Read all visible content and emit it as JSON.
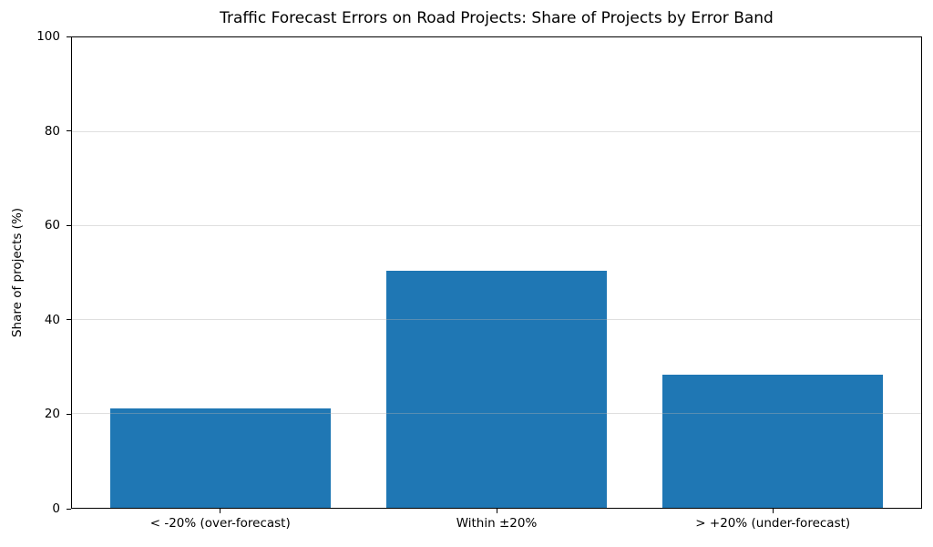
{
  "chart_data": {
    "type": "bar",
    "title": "Traffic Forecast Errors on Road Projects: Share of Projects by Error Band",
    "ylabel": "Share of projects (%)",
    "xlabel": "",
    "categories": [
      "< -20% (over-forecast)",
      "Within ±20%",
      "> +20% (under-forecast)"
    ],
    "values": [
      21.2,
      50.4,
      28.3
    ],
    "x_positions": [
      0,
      1,
      2
    ],
    "ylim": [
      0,
      100
    ],
    "xlim": [
      -0.54,
      2.54
    ],
    "yticks": [
      0,
      20,
      40,
      60,
      80,
      100
    ],
    "bar_width_fraction": 0.8,
    "grid": "horizontal",
    "legend": "none",
    "bar_color": "#1f77b4",
    "grid_color": "rgba(176,176,176,0.4)",
    "spine_color": "#000000",
    "background_color": "#ffffff"
  }
}
